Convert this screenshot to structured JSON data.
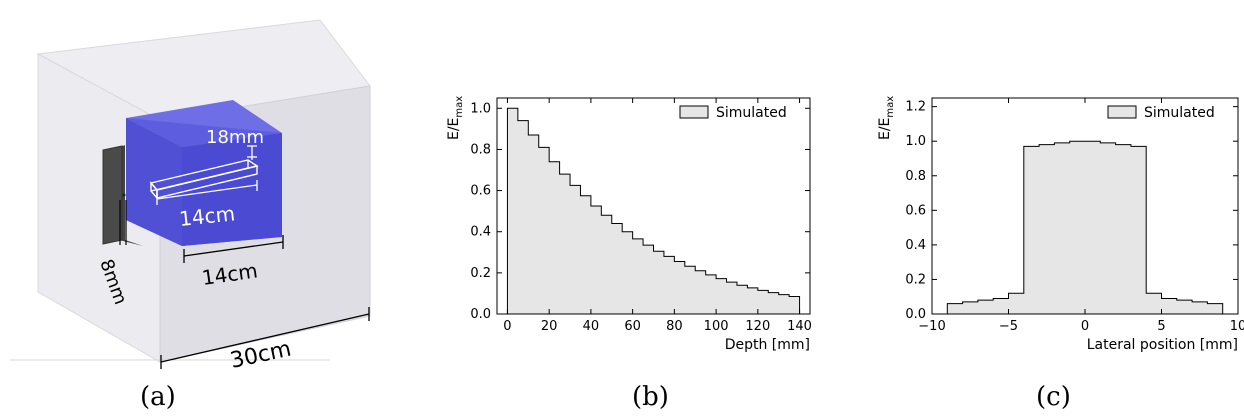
{
  "panels": {
    "a": {
      "caption": "(a)",
      "labels": {
        "bar_length": "14cm",
        "bar_height": "18mm",
        "pinhole": "8mm",
        "block_width": "14cm",
        "box_width": "30cm"
      },
      "colors": {
        "outer_box": "#e6e6ec",
        "block": "#5a5ad8",
        "plate": "#555555",
        "annotation": "#ffffff",
        "dimension": "#000000"
      }
    },
    "b": {
      "caption": "(b)"
    },
    "c": {
      "caption": "(c)"
    }
  },
  "chart_data": [
    {
      "type": "area",
      "ylabel": "E/E",
      "ylabel_sub": "max",
      "xlabel": "Depth [mm]",
      "xlim": [
        -5,
        145
      ],
      "ylim": [
        0,
        1.05
      ],
      "xticks": [
        0,
        20,
        40,
        60,
        80,
        100,
        120,
        140
      ],
      "yticks": [
        0.0,
        0.2,
        0.4,
        0.6,
        0.8,
        1.0
      ],
      "legend": "top-right",
      "series": [
        {
          "name": "Simulated",
          "fill": "#e6e6e6",
          "stroke": "#000000",
          "x": [
            0,
            5,
            10,
            15,
            20,
            25,
            30,
            35,
            40,
            45,
            50,
            55,
            60,
            65,
            70,
            75,
            80,
            85,
            90,
            95,
            100,
            105,
            110,
            115,
            120,
            125,
            130,
            135,
            140
          ],
          "y": [
            1.0,
            0.94,
            0.87,
            0.81,
            0.74,
            0.68,
            0.625,
            0.575,
            0.525,
            0.48,
            0.44,
            0.4,
            0.365,
            0.335,
            0.305,
            0.28,
            0.255,
            0.232,
            0.21,
            0.19,
            0.172,
            0.155,
            0.14,
            0.127,
            0.115,
            0.104,
            0.094,
            0.085,
            0.075
          ]
        }
      ]
    },
    {
      "type": "bar",
      "ylabel": "E/E",
      "ylabel_sub": "max",
      "xlabel": "Lateral position [mm]",
      "xlim": [
        -10,
        10
      ],
      "ylim": [
        0,
        1.25
      ],
      "xticks": [
        -10,
        -5,
        0,
        5,
        10
      ],
      "xticklabels": [
        "−10",
        "−5",
        "0",
        "5",
        "10"
      ],
      "yticks": [
        0.0,
        0.2,
        0.4,
        0.6,
        0.8,
        1.0,
        1.2
      ],
      "legend": "top-right",
      "series": [
        {
          "name": "Simulated",
          "fill": "#e6e6e6",
          "stroke": "#000000",
          "bin_edges": [
            -9,
            -8,
            -7,
            -6,
            -5,
            -4,
            -3,
            -2,
            -1,
            0,
            1,
            2,
            3,
            4,
            5,
            6,
            7,
            8,
            9
          ],
          "values": [
            0.06,
            0.07,
            0.08,
            0.09,
            0.12,
            0.97,
            0.98,
            0.99,
            1.0,
            1.0,
            0.99,
            0.98,
            0.97,
            0.12,
            0.09,
            0.08,
            0.07,
            0.06
          ]
        }
      ]
    }
  ]
}
